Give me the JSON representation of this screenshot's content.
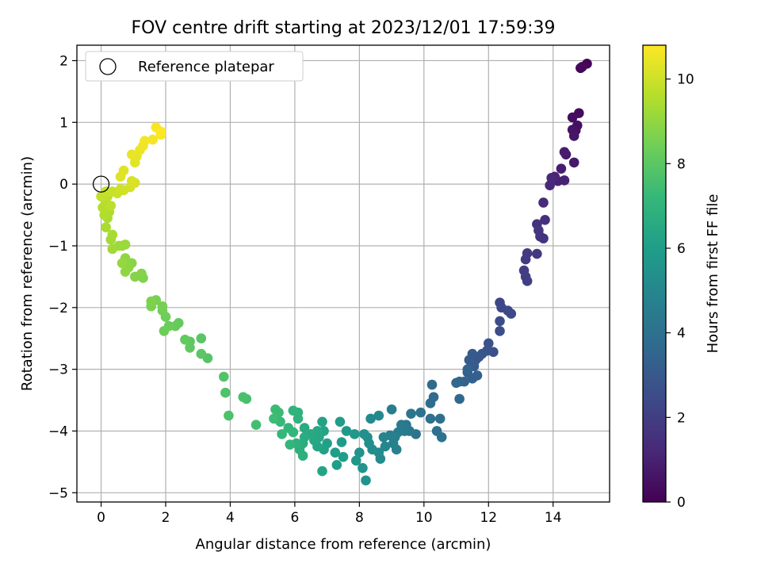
{
  "chart_data": {
    "type": "scatter",
    "title": "FOV centre drift starting at 2023/12/01 17:59:39",
    "xlabel": "Angular distance from reference (arcmin)",
    "ylabel": "Rotation from reference (arcmin)",
    "xlim": [
      -0.75,
      15.75
    ],
    "ylim": [
      -5.15,
      2.25
    ],
    "xticks": [
      0,
      2,
      4,
      6,
      8,
      10,
      12,
      14
    ],
    "yticks": [
      -5,
      -4,
      -3,
      -2,
      -1,
      0,
      1,
      2
    ],
    "grid": true,
    "legend": {
      "position": "top-left",
      "entries": [
        "Reference platepar"
      ]
    },
    "reference_point": {
      "x": 0,
      "y": 0
    },
    "colorbar": {
      "label": "Hours from first FF file",
      "range": [
        0,
        10.8
      ],
      "ticks": [
        0,
        2,
        4,
        6,
        8,
        10
      ],
      "colormap": "viridis"
    },
    "colormap_stops": [
      "#440154",
      "#482878",
      "#3e4989",
      "#31688e",
      "#26828e",
      "#1f9e89",
      "#35b779",
      "#6ece58",
      "#b5de2b",
      "#fde725"
    ],
    "series": [
      {
        "points": [
          [
            15.05,
            1.95,
            0.05
          ],
          [
            14.85,
            1.88,
            0.12
          ],
          [
            14.9,
            1.9,
            0.2
          ],
          [
            14.8,
            1.15,
            0.3
          ],
          [
            14.6,
            1.08,
            0.38
          ],
          [
            14.75,
            0.95,
            0.45
          ],
          [
            14.7,
            0.87,
            0.5
          ],
          [
            14.6,
            0.88,
            0.55
          ],
          [
            14.65,
            0.78,
            0.6
          ],
          [
            14.65,
            0.35,
            0.7
          ],
          [
            14.4,
            0.48,
            0.8
          ],
          [
            14.35,
            0.52,
            0.85
          ],
          [
            14.25,
            0.25,
            0.9
          ],
          [
            14.15,
            0.05,
            1.0
          ],
          [
            14.35,
            0.06,
            1.05
          ],
          [
            14.05,
            0.12,
            1.1
          ],
          [
            13.95,
            0.1,
            1.2
          ],
          [
            13.9,
            -0.02,
            1.25
          ],
          [
            13.7,
            -0.3,
            1.35
          ],
          [
            13.75,
            -0.58,
            1.45
          ],
          [
            13.5,
            -0.65,
            1.55
          ],
          [
            13.6,
            -0.85,
            1.6
          ],
          [
            13.7,
            -0.88,
            1.65
          ],
          [
            13.55,
            -0.75,
            1.7
          ],
          [
            13.5,
            -1.13,
            1.8
          ],
          [
            13.2,
            -1.12,
            1.85
          ],
          [
            13.15,
            -1.22,
            1.9
          ],
          [
            13.1,
            -1.4,
            1.95
          ],
          [
            13.15,
            -1.5,
            2.0
          ],
          [
            13.2,
            -1.57,
            2.05
          ],
          [
            12.35,
            -1.92,
            2.3
          ],
          [
            12.4,
            -2.0,
            2.35
          ],
          [
            12.6,
            -2.05,
            2.4
          ],
          [
            12.7,
            -2.1,
            2.45
          ],
          [
            12.35,
            -2.22,
            2.5
          ],
          [
            12.35,
            -2.38,
            2.55
          ],
          [
            12.15,
            -2.72,
            2.65
          ],
          [
            12.0,
            -2.58,
            2.7
          ],
          [
            11.95,
            -2.7,
            2.8
          ],
          [
            11.8,
            -2.75,
            2.9
          ],
          [
            11.7,
            -2.8,
            2.95
          ],
          [
            11.6,
            -2.85,
            3.0
          ],
          [
            11.5,
            -2.75,
            3.05
          ],
          [
            11.55,
            -2.95,
            3.1
          ],
          [
            11.4,
            -2.85,
            3.15
          ],
          [
            11.35,
            -3.05,
            3.2
          ],
          [
            11.65,
            -3.1,
            3.25
          ],
          [
            11.5,
            -3.15,
            3.3
          ],
          [
            11.25,
            -3.2,
            3.35
          ],
          [
            11.35,
            -3.0,
            3.4
          ],
          [
            11.1,
            -3.2,
            3.5
          ],
          [
            11.0,
            -3.22,
            3.55
          ],
          [
            11.1,
            -3.48,
            3.6
          ],
          [
            10.25,
            -3.25,
            3.75
          ],
          [
            10.3,
            -3.45,
            3.8
          ],
          [
            10.2,
            -3.55,
            3.85
          ],
          [
            10.5,
            -3.8,
            3.9
          ],
          [
            10.2,
            -3.8,
            3.95
          ],
          [
            10.4,
            -4.0,
            4.0
          ],
          [
            10.55,
            -4.1,
            4.05
          ],
          [
            9.9,
            -3.7,
            4.1
          ],
          [
            9.75,
            -4.05,
            4.15
          ],
          [
            9.6,
            -3.72,
            4.2
          ],
          [
            9.45,
            -3.9,
            4.3
          ],
          [
            9.55,
            -4.0,
            4.35
          ],
          [
            9.3,
            -3.9,
            4.4
          ],
          [
            9.4,
            -4.0,
            4.45
          ],
          [
            9.2,
            -4.02,
            4.5
          ],
          [
            9.0,
            -3.65,
            4.6
          ],
          [
            9.1,
            -4.1,
            4.65
          ],
          [
            8.95,
            -4.07,
            4.7
          ],
          [
            9.05,
            -4.2,
            4.75
          ],
          [
            9.15,
            -4.3,
            4.8
          ],
          [
            8.75,
            -4.1,
            4.9
          ],
          [
            8.8,
            -4.25,
            4.95
          ],
          [
            8.6,
            -3.75,
            5.05
          ],
          [
            8.35,
            -3.8,
            5.1
          ],
          [
            8.6,
            -4.35,
            5.15
          ],
          [
            8.65,
            -4.45,
            5.2
          ],
          [
            8.4,
            -4.3,
            5.25
          ],
          [
            8.3,
            -4.2,
            5.3
          ],
          [
            8.25,
            -4.1,
            5.35
          ],
          [
            8.15,
            -4.05,
            5.4
          ],
          [
            8.0,
            -4.35,
            5.5
          ],
          [
            8.1,
            -4.6,
            5.55
          ],
          [
            8.2,
            -4.8,
            5.6
          ],
          [
            7.9,
            -4.48,
            5.7
          ],
          [
            7.85,
            -4.05,
            5.75
          ],
          [
            7.6,
            -4.0,
            5.8
          ],
          [
            7.45,
            -4.18,
            5.85
          ],
          [
            7.4,
            -3.85,
            5.9
          ],
          [
            7.5,
            -4.42,
            5.95
          ],
          [
            7.25,
            -4.35,
            6.0
          ],
          [
            7.3,
            -4.55,
            6.05
          ],
          [
            7.0,
            -4.2,
            6.1
          ],
          [
            6.9,
            -4.3,
            6.15
          ],
          [
            6.85,
            -3.85,
            6.2
          ],
          [
            6.9,
            -4.0,
            6.25
          ],
          [
            6.85,
            -4.65,
            6.3
          ],
          [
            6.7,
            -4.25,
            6.35
          ],
          [
            6.75,
            -4.1,
            6.4
          ],
          [
            6.6,
            -4.15,
            6.45
          ],
          [
            6.7,
            -4.0,
            6.5
          ],
          [
            6.5,
            -4.05,
            6.55
          ],
          [
            6.3,
            -3.95,
            6.6
          ],
          [
            6.3,
            -4.1,
            6.65
          ],
          [
            6.25,
            -4.2,
            6.7
          ],
          [
            6.15,
            -4.3,
            6.75
          ],
          [
            6.25,
            -4.4,
            6.8
          ],
          [
            6.05,
            -4.2,
            6.85
          ],
          [
            6.1,
            -3.8,
            6.9
          ],
          [
            6.1,
            -3.7,
            6.95
          ],
          [
            5.95,
            -3.67,
            7.0
          ],
          [
            5.95,
            -4.02,
            7.05
          ],
          [
            5.8,
            -3.95,
            7.1
          ],
          [
            5.85,
            -4.22,
            7.15
          ],
          [
            5.6,
            -4.05,
            7.2
          ],
          [
            5.55,
            -3.85,
            7.25
          ],
          [
            5.5,
            -3.7,
            7.3
          ],
          [
            5.4,
            -3.65,
            7.35
          ],
          [
            5.35,
            -3.8,
            7.4
          ],
          [
            4.8,
            -3.9,
            7.5
          ],
          [
            4.5,
            -3.48,
            7.6
          ],
          [
            4.4,
            -3.45,
            7.65
          ],
          [
            3.95,
            -3.75,
            7.7
          ],
          [
            3.85,
            -3.38,
            7.75
          ],
          [
            3.8,
            -3.12,
            7.8
          ],
          [
            3.3,
            -2.82,
            7.9
          ],
          [
            3.1,
            -2.5,
            7.95
          ],
          [
            3.1,
            -2.75,
            8.0
          ],
          [
            2.75,
            -2.55,
            8.05
          ],
          [
            2.75,
            -2.65,
            8.1
          ],
          [
            2.6,
            -2.52,
            8.15
          ],
          [
            2.4,
            -2.25,
            8.2
          ],
          [
            2.3,
            -2.3,
            8.25
          ],
          [
            2.1,
            -2.3,
            8.3
          ],
          [
            1.95,
            -2.38,
            8.35
          ],
          [
            2.0,
            -2.15,
            8.4
          ],
          [
            1.9,
            -2.05,
            8.45
          ],
          [
            1.9,
            -1.98,
            8.5
          ],
          [
            1.7,
            -1.88,
            8.55
          ],
          [
            1.55,
            -1.98,
            8.6
          ],
          [
            1.55,
            -1.9,
            8.65
          ],
          [
            1.3,
            -1.52,
            8.7
          ],
          [
            1.25,
            -1.45,
            8.75
          ],
          [
            1.05,
            -1.5,
            8.8
          ],
          [
            0.95,
            -1.28,
            8.85
          ],
          [
            0.85,
            -1.35,
            8.9
          ],
          [
            0.75,
            -1.2,
            8.95
          ],
          [
            0.75,
            -1.42,
            9.0
          ],
          [
            0.65,
            -1.28,
            9.05
          ],
          [
            0.65,
            -1.0,
            9.1
          ],
          [
            0.75,
            -0.98,
            9.15
          ],
          [
            0.55,
            -1.0,
            9.2
          ],
          [
            0.35,
            -1.05,
            9.25
          ],
          [
            0.3,
            -0.9,
            9.3
          ],
          [
            0.35,
            -0.82,
            9.35
          ],
          [
            0.15,
            -0.7,
            9.4
          ],
          [
            0.2,
            -0.55,
            9.45
          ],
          [
            0.25,
            -0.45,
            9.5
          ],
          [
            0.1,
            -0.5,
            9.55
          ],
          [
            0.05,
            -0.38,
            9.6
          ],
          [
            0.15,
            -0.3,
            9.65
          ],
          [
            0.3,
            -0.35,
            9.7
          ],
          [
            0.2,
            -0.2,
            9.75
          ],
          [
            0.0,
            -0.2,
            9.8
          ],
          [
            0.15,
            -0.12,
            9.85
          ],
          [
            0.35,
            -0.12,
            9.9
          ],
          [
            0.5,
            -0.15,
            9.95
          ],
          [
            0.6,
            -0.08,
            10.0
          ],
          [
            0.7,
            -0.1,
            10.05
          ],
          [
            0.9,
            -0.05,
            10.1
          ],
          [
            0.95,
            0.05,
            10.15
          ],
          [
            1.05,
            0.02,
            10.2
          ],
          [
            0.6,
            0.12,
            10.25
          ],
          [
            0.7,
            0.22,
            10.3
          ],
          [
            1.05,
            0.35,
            10.35
          ],
          [
            1.1,
            0.45,
            10.4
          ],
          [
            0.95,
            0.48,
            10.45
          ],
          [
            1.2,
            0.55,
            10.5
          ],
          [
            1.3,
            0.62,
            10.55
          ],
          [
            1.35,
            0.7,
            10.6
          ],
          [
            1.6,
            0.72,
            10.65
          ],
          [
            1.7,
            0.92,
            10.7
          ],
          [
            1.85,
            0.8,
            10.75
          ],
          [
            1.85,
            0.85,
            10.8
          ]
        ]
      }
    ]
  }
}
